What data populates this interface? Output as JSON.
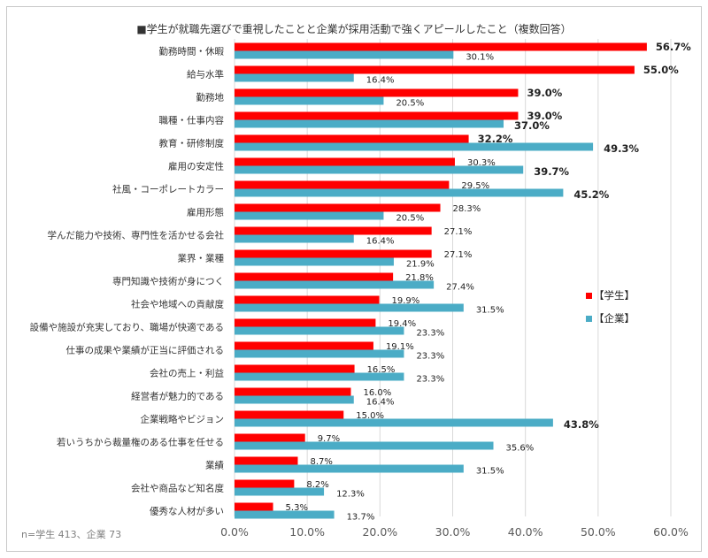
{
  "chart_data": {
    "type": "bar",
    "orientation": "horizontal",
    "title": "■学生が就職先選びで重視したことと企業が採用活動で強くアピールしたこと（複数回答）",
    "note": "n=学生 413、企業 73",
    "categories": [
      "勤務時間・休暇",
      "給与水準",
      "勤務地",
      "職種・仕事内容",
      "教育・研修制度",
      "雇用の安定性",
      "社風・コーポレートカラー",
      "雇用形態",
      "学んだ能力や技術、専門性を活かせる会社",
      "業界・業種",
      "専門知識や技術が身につく",
      "社会や地域への貢献度",
      "設備や施設が充実しており、職場が快適である",
      "仕事の成果や業績が正当に評価される",
      "会社の売上・利益",
      "経営者が魅力的である",
      "企業戦略やビジョン",
      "若いうちから裁量権のある仕事を任せる",
      "業績",
      "会社や商品など知名度",
      "優秀な人材が多い"
    ],
    "series": [
      {
        "name": "【学生】",
        "color": "#ff0000",
        "highlight_color": "#e8241f",
        "values": [
          56.7,
          55.0,
          39.0,
          39.0,
          32.2,
          30.3,
          29.5,
          28.3,
          27.1,
          27.1,
          21.8,
          19.9,
          19.4,
          19.1,
          16.5,
          16.0,
          15.0,
          9.7,
          8.7,
          8.2,
          5.3
        ],
        "labels": [
          "56.7%",
          "55.0%",
          "39.0%",
          "39.0%",
          "32.2%",
          "30.3%",
          "29.5%",
          "28.3%",
          "27.1%",
          "27.1%",
          "21.8%",
          "19.9%",
          "19.4%",
          "19.1%",
          "16.5%",
          "16.0%",
          "15.0%",
          "9.7%",
          "8.7%",
          "8.2%",
          "5.3%"
        ],
        "highlight": [
          true,
          true,
          true,
          true,
          true,
          false,
          false,
          false,
          false,
          false,
          false,
          false,
          false,
          false,
          false,
          false,
          false,
          false,
          false,
          false,
          false
        ]
      },
      {
        "name": "【企業】",
        "color": "#4bacc6",
        "highlight_color": "#4f81bd",
        "values": [
          30.1,
          16.4,
          20.5,
          37.0,
          49.3,
          39.7,
          45.2,
          20.5,
          16.4,
          21.9,
          27.4,
          31.5,
          23.3,
          23.3,
          23.3,
          16.4,
          43.8,
          35.6,
          31.5,
          12.3,
          13.7
        ],
        "labels": [
          "30.1%",
          "16.4%",
          "20.5%",
          "37.0%",
          "49.3%",
          "39.7%",
          "45.2%",
          "20.5%",
          "16.4%",
          "21.9%",
          "27.4%",
          "31.5%",
          "23.3%",
          "23.3%",
          "23.3%",
          "16.4%",
          "43.8%",
          "35.6%",
          "31.5%",
          "12.3%",
          "13.7%"
        ],
        "highlight": [
          false,
          false,
          false,
          true,
          true,
          true,
          true,
          false,
          false,
          false,
          false,
          false,
          false,
          false,
          false,
          false,
          true,
          false,
          false,
          false,
          false
        ]
      }
    ],
    "xlim": [
      0,
      60
    ],
    "xticks": [
      "0.0%",
      "10.0%",
      "20.0%",
      "30.0%",
      "40.0%",
      "50.0%",
      "60.0%"
    ],
    "grid": "vertical",
    "legend_position": "right"
  }
}
